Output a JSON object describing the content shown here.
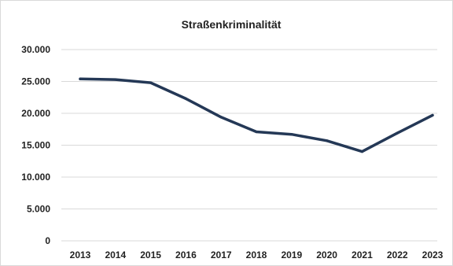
{
  "chart_data": {
    "type": "line",
    "title": "Straßenkriminalität",
    "xlabel": "",
    "ylabel": "",
    "categories": [
      "2013",
      "2014",
      "2015",
      "2016",
      "2017",
      "2018",
      "2019",
      "2020",
      "2021",
      "2022",
      "2023"
    ],
    "series": [
      {
        "values": [
          25400,
          25300,
          24800,
          22300,
          19400,
          17100,
          16700,
          15700,
          14000,
          16900,
          19700
        ]
      }
    ],
    "yticks": [
      "0",
      "5.000",
      "10.000",
      "15.000",
      "20.000",
      "25.000",
      "30.000"
    ],
    "ylim": [
      0,
      30000
    ],
    "grid": true,
    "legend": "none",
    "colors": {
      "line": "#243856",
      "grid": "#d9d9d9",
      "text": "#222222"
    }
  }
}
